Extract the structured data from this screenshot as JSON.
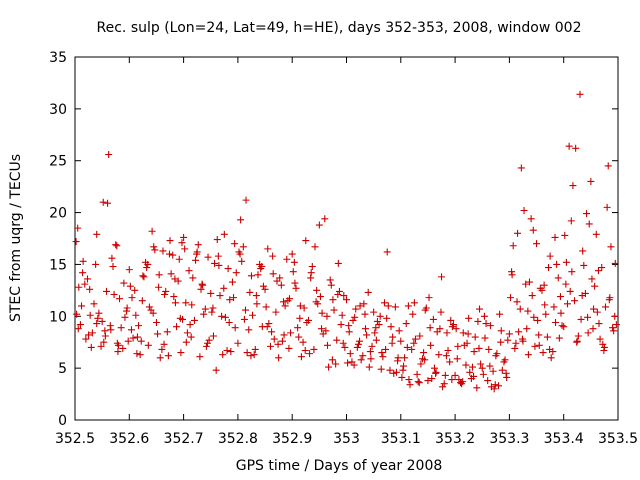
{
  "chart_data": {
    "type": "scatter",
    "title": "Rec. sulp (Lon=24, Lat=49, h=HE), days 352-353, 2008, window 002",
    "xlabel": "GPS time / Days of year 2008",
    "ylabel": "STEC from uqrg / TECUs",
    "xlim": [
      352.5,
      353.5
    ],
    "ylim": [
      0,
      35
    ],
    "x_ticks": [
      352.5,
      352.6,
      352.7,
      352.8,
      352.9,
      353,
      353.1,
      353.2,
      353.3,
      353.4,
      353.5
    ],
    "x_tick_labels": [
      "352.5",
      "352.6",
      "352.7",
      "352.8",
      "352.9",
      "353",
      "353.1",
      "353.2",
      "353.3",
      "353.4",
      "353.5"
    ],
    "y_ticks": [
      0,
      5,
      10,
      15,
      20,
      25,
      30,
      35
    ],
    "y_tick_labels": [
      "0",
      "5",
      "10",
      "15",
      "20",
      "25",
      "30",
      "35"
    ],
    "grid": false,
    "marker": "plus",
    "series_color": "#cc0000",
    "series": [
      {
        "name": "STEC",
        "x": [
          352.505,
          352.507,
          352.51,
          352.515,
          352.52,
          352.523,
          352.528,
          352.532,
          352.535,
          352.54,
          352.542,
          352.548,
          352.552,
          352.555,
          352.558,
          352.562,
          352.565,
          352.57,
          352.575,
          352.578,
          352.582,
          352.585,
          352.59,
          352.595,
          352.598,
          352.502,
          352.512,
          352.525,
          352.538,
          352.55,
          352.56,
          352.572,
          352.58,
          352.592,
          352.506,
          352.518,
          352.53,
          352.544,
          352.556,
          352.568,
          352.577,
          352.588,
          352.503,
          352.514,
          352.527,
          352.54,
          352.553,
          352.566,
          352.579,
          352.596,
          352.6,
          352.605,
          352.61,
          352.615,
          352.62,
          352.625,
          352.63,
          352.635,
          352.64,
          352.645,
          352.65,
          352.655,
          352.66,
          352.665,
          352.67,
          352.675,
          352.68,
          352.685,
          352.69,
          352.695,
          352.698,
          352.602,
          352.612,
          352.622,
          352.632,
          352.642,
          352.652,
          352.662,
          352.672,
          352.682,
          352.692,
          352.607,
          352.617,
          352.627,
          352.637,
          352.647,
          352.657,
          352.667,
          352.677,
          352.687,
          352.697,
          352.604,
          352.614,
          352.624,
          352.634,
          352.644,
          352.654,
          352.664,
          352.674,
          352.684,
          352.694,
          352.7,
          352.705,
          352.71,
          352.715,
          352.72,
          352.725,
          352.73,
          352.735,
          352.74,
          352.745,
          352.75,
          352.755,
          352.76,
          352.765,
          352.77,
          352.775,
          352.78,
          352.785,
          352.79,
          352.795,
          352.702,
          352.712,
          352.722,
          352.732,
          352.742,
          352.752,
          352.762,
          352.772,
          352.782,
          352.792,
          352.707,
          352.717,
          352.727,
          352.737,
          352.747,
          352.757,
          352.767,
          352.777,
          352.787,
          352.797,
          352.704,
          352.714,
          352.724,
          352.734,
          352.744,
          352.754,
          352.764,
          352.774,
          352.784,
          352.794,
          352.8,
          352.805,
          352.81,
          352.815,
          352.82,
          352.825,
          352.83,
          352.835,
          352.84,
          352.845,
          352.85,
          352.855,
          352.86,
          352.865,
          352.87,
          352.875,
          352.88,
          352.885,
          352.89,
          352.895,
          352.802,
          352.812,
          352.822,
          352.832,
          352.842,
          352.852,
          352.862,
          352.872,
          352.882,
          352.892,
          352.807,
          352.817,
          352.827,
          352.837,
          352.847,
          352.857,
          352.867,
          352.877,
          352.887,
          352.897,
          352.804,
          352.814,
          352.824,
          352.834,
          352.844,
          352.854,
          352.864,
          352.874,
          352.884,
          352.894,
          352.9,
          352.905,
          352.91,
          352.915,
          352.92,
          352.925,
          352.93,
          352.935,
          352.94,
          352.945,
          352.95,
          352.955,
          352.96,
          352.965,
          352.97,
          352.975,
          352.98,
          352.985,
          352.99,
          352.995,
          352.902,
          352.912,
          352.922,
          352.932,
          352.942,
          352.952,
          352.962,
          352.972,
          352.982,
          352.992,
          352.907,
          352.917,
          352.927,
          352.937,
          352.947,
          352.957,
          352.967,
          352.977,
          352.987,
          352.997,
          352.904,
          352.914,
          352.924,
          352.934,
          352.944,
          352.954,
          352.964,
          352.974,
          352.984,
          352.994,
          353.0,
          353.005,
          353.01,
          353.015,
          353.02,
          353.025,
          353.03,
          353.035,
          353.04,
          353.045,
          353.05,
          353.055,
          353.06,
          353.065,
          353.07,
          353.075,
          353.08,
          353.085,
          353.09,
          353.095,
          353.002,
          353.012,
          353.022,
          353.032,
          353.042,
          353.052,
          353.062,
          353.072,
          353.082,
          353.092,
          353.007,
          353.017,
          353.027,
          353.037,
          353.047,
          353.057,
          353.067,
          353.077,
          353.087,
          353.097,
          353.004,
          353.014,
          353.024,
          353.034,
          353.044,
          353.054,
          353.064,
          353.074,
          353.084,
          353.094,
          353.1,
          353.105,
          353.11,
          353.115,
          353.12,
          353.125,
          353.13,
          353.135,
          353.14,
          353.145,
          353.15,
          353.155,
          353.16,
          353.165,
          353.17,
          353.175,
          353.18,
          353.185,
          353.19,
          353.195,
          353.102,
          353.112,
          353.122,
          353.132,
          353.142,
          353.152,
          353.162,
          353.172,
          353.182,
          353.192,
          353.107,
          353.117,
          353.127,
          353.137,
          353.147,
          353.157,
          353.167,
          353.177,
          353.187,
          353.197,
          353.104,
          353.114,
          353.124,
          353.134,
          353.144,
          353.154,
          353.164,
          353.174,
          353.184,
          353.194,
          353.2,
          353.205,
          353.21,
          353.215,
          353.22,
          353.225,
          353.23,
          353.235,
          353.24,
          353.245,
          353.25,
          353.255,
          353.26,
          353.265,
          353.27,
          353.275,
          353.28,
          353.285,
          353.29,
          353.295,
          353.202,
          353.212,
          353.222,
          353.232,
          353.242,
          353.252,
          353.262,
          353.272,
          353.282,
          353.292,
          353.207,
          353.217,
          353.227,
          353.237,
          353.247,
          353.257,
          353.267,
          353.277,
          353.287,
          353.297,
          353.204,
          353.214,
          353.224,
          353.234,
          353.244,
          353.254,
          353.264,
          353.274,
          353.284,
          353.294,
          353.3,
          353.305,
          353.31,
          353.315,
          353.32,
          353.325,
          353.33,
          353.335,
          353.34,
          353.345,
          353.35,
          353.355,
          353.36,
          353.365,
          353.37,
          353.375,
          353.38,
          353.385,
          353.39,
          353.395,
          353.302,
          353.312,
          353.322,
          353.332,
          353.342,
          353.352,
          353.362,
          353.372,
          353.382,
          353.392,
          353.307,
          353.317,
          353.327,
          353.337,
          353.347,
          353.357,
          353.367,
          353.377,
          353.387,
          353.397,
          353.304,
          353.314,
          353.324,
          353.334,
          353.344,
          353.354,
          353.364,
          353.374,
          353.384,
          353.394,
          353.4,
          353.405,
          353.41,
          353.415,
          353.42,
          353.425,
          353.43,
          353.435,
          353.44,
          353.445,
          353.45,
          353.455,
          353.46,
          353.465,
          353.47,
          353.475,
          353.48,
          353.485,
          353.49,
          353.495,
          353.402,
          353.412,
          353.422,
          353.432,
          353.442,
          353.452,
          353.462,
          353.472,
          353.482,
          353.492,
          353.407,
          353.417,
          353.427,
          353.437,
          353.447,
          353.457,
          353.467,
          353.477,
          353.487,
          353.497,
          353.404,
          353.414,
          353.424,
          353.434,
          353.444,
          353.454,
          353.464,
          353.474,
          353.484,
          353.494
        ],
        "y": [
          18.5,
          12.8,
          9.2,
          15.3,
          7.8,
          13.6,
          10.1,
          8.4,
          11.2,
          17.9,
          9.8,
          7.1,
          21.0,
          8.6,
          12.4,
          25.6,
          9.1,
          14.8,
          16.9,
          7.4,
          11.7,
          8.9,
          13.2,
          10.5,
          7.6,
          17.2,
          11.0,
          8.2,
          15.0,
          9.5,
          20.9,
          12.1,
          7.2,
          9.9,
          8.8,
          13.1,
          7.0,
          10.3,
          8.1,
          15.6,
          16.8,
          6.9,
          10.2,
          14.2,
          12.6,
          9.3,
          7.5,
          8.7,
          6.6,
          10.8,
          14.5,
          11.8,
          12.5,
          8.0,
          6.3,
          13.9,
          15.2,
          7.2,
          10.6,
          16.7,
          9.4,
          14.0,
          6.8,
          12.1,
          8.5,
          17.3,
          15.9,
          11.3,
          13.4,
          6.5,
          9.7,
          12.9,
          10.1,
          7.6,
          14.7,
          18.2,
          8.3,
          16.3,
          6.2,
          11.9,
          15.5,
          7.9,
          9.1,
          13.8,
          10.9,
          16.4,
          6.0,
          12.4,
          14.1,
          9.0,
          17.1,
          8.7,
          6.4,
          11.5,
          15.0,
          10.3,
          12.8,
          7.3,
          16.0,
          13.6,
          9.8,
          17.6,
          7.5,
          14.4,
          11.1,
          9.6,
          16.2,
          6.1,
          13.0,
          10.7,
          15.7,
          12.2,
          8.1,
          4.8,
          14.9,
          10.0,
          17.9,
          6.7,
          11.6,
          13.3,
          8.9,
          16.5,
          9.2,
          15.4,
          12.6,
          7.1,
          10.4,
          17.4,
          6.3,
          14.6,
          11.8,
          8.4,
          13.7,
          16.9,
          10.2,
          7.7,
          15.1,
          12.0,
          9.9,
          6.6,
          14.2,
          11.3,
          8.0,
          16.0,
          13.1,
          7.4,
          10.8,
          15.8,
          12.7,
          9.4,
          17.0,
          7.4,
          19.3,
          16.7,
          21.2,
          8.7,
          13.9,
          6.3,
          11.2,
          15.0,
          9.0,
          12.6,
          16.5,
          7.1,
          14.1,
          10.4,
          6.0,
          13.0,
          8.2,
          15.5,
          11.7,
          16.2,
          9.7,
          12.3,
          6.8,
          14.6,
          10.9,
          8.5,
          13.4,
          7.6,
          11.5,
          15.3,
          6.5,
          10.1,
          14.0,
          12.9,
          9.3,
          7.8,
          13.7,
          11.0,
          8.4,
          16.0,
          10.6,
          6.2,
          12.0,
          14.8,
          9.0,
          15.8,
          7.3,
          11.4,
          6.9,
          16.0,
          13.2,
          8.9,
          11.0,
          7.5,
          17.3,
          9.6,
          14.2,
          6.8,
          12.5,
          18.8,
          10.3,
          19.4,
          7.2,
          13.5,
          11.6,
          5.4,
          15.1,
          9.2,
          12.0,
          14.3,
          8.0,
          10.8,
          6.4,
          16.7,
          11.9,
          8.6,
          13.0,
          7.7,
          10.1,
          12.7,
          6.1,
          9.4,
          14.8,
          11.2,
          8.3,
          5.1,
          10.6,
          12.4,
          7.0,
          15.2,
          9.8,
          6.7,
          13.7,
          11.4,
          8.8,
          10.0,
          5.8,
          12.1,
          7.4,
          11.6,
          8.5,
          5.6,
          9.9,
          7.0,
          11.0,
          6.2,
          8.8,
          12.3,
          5.9,
          10.4,
          7.7,
          9.2,
          6.5,
          11.3,
          16.2,
          4.8,
          8.0,
          10.9,
          6.0,
          5.5,
          9.6,
          7.3,
          11.2,
          5.1,
          8.4,
          10.0,
          6.8,
          9.0,
          4.6,
          6.4,
          10.7,
          5.8,
          8.2,
          7.1,
          9.5,
          6.1,
          11.0,
          4.5,
          8.6,
          9.1,
          5.3,
          7.6,
          10.2,
          6.6,
          8.9,
          4.9,
          9.8,
          7.4,
          5.7,
          7.6,
          5.2,
          9.3,
          3.9,
          6.8,
          11.3,
          4.4,
          8.1,
          5.9,
          10.6,
          3.8,
          7.2,
          9.7,
          4.6,
          6.3,
          13.8,
          3.5,
          8.4,
          5.6,
          9.0,
          4.1,
          7.0,
          10.2,
          3.7,
          6.5,
          11.8,
          5.0,
          8.8,
          4.3,
          9.6,
          6.0,
          3.4,
          7.8,
          5.4,
          10.8,
          4.0,
          8.5,
          3.2,
          6.7,
          9.2,
          4.8,
          11.0,
          7.4,
          3.6,
          5.8,
          8.9,
          4.5,
          10.4,
          6.2,
          3.9,
          4.3,
          7.1,
          3.6,
          8.4,
          5.3,
          9.8,
          4.0,
          6.6,
          3.1,
          10.7,
          5.0,
          7.9,
          3.8,
          9.1,
          4.7,
          6.2,
          3.3,
          8.6,
          5.6,
          4.1,
          8.8,
          3.5,
          7.4,
          5.1,
          9.5,
          4.4,
          6.8,
          3.0,
          10.2,
          5.8,
          3.9,
          7.2,
          4.6,
          8.0,
          5.4,
          9.3,
          3.2,
          6.4,
          4.8,
          7.7,
          5.9,
          3.7,
          8.3,
          4.2,
          6.9,
          10.0,
          5.2,
          3.4,
          7.5,
          4.5,
          8.3,
          14.0,
          6.9,
          18.0,
          10.7,
          7.6,
          13.1,
          6.3,
          19.4,
          9.9,
          17.0,
          7.2,
          12.5,
          11.1,
          8.0,
          15.8,
          6.6,
          9.4,
          13.7,
          10.3,
          11.8,
          7.4,
          24.3,
          8.8,
          12.0,
          9.6,
          6.5,
          14.7,
          10.9,
          7.9,
          16.8,
          8.5,
          20.2,
          13.3,
          7.1,
          12.7,
          10.2,
          6.0,
          15.0,
          9.1,
          14.3,
          11.4,
          7.8,
          10.5,
          18.3,
          8.2,
          13.0,
          6.8,
          17.6,
          11.9,
          9.0,
          15.2,
          26.4,
          14.3,
          11.5,
          7.6,
          31.4,
          16.3,
          12.2,
          8.4,
          23.0,
          10.7,
          17.9,
          9.3,
          14.7,
          7.0,
          20.5,
          11.8,
          8.9,
          15.1,
          17.8,
          12.4,
          26.2,
          9.7,
          19.9,
          13.6,
          10.4,
          7.3,
          24.5,
          8.6,
          11.2,
          22.6,
          8.1,
          14.9,
          18.9,
          12.9,
          7.8,
          10.9,
          16.7,
          9.2,
          13.1,
          19.2,
          7.5,
          12.0,
          9.9,
          8.8,
          14.4,
          6.7,
          11.6,
          10.0
        ]
      }
    ]
  }
}
